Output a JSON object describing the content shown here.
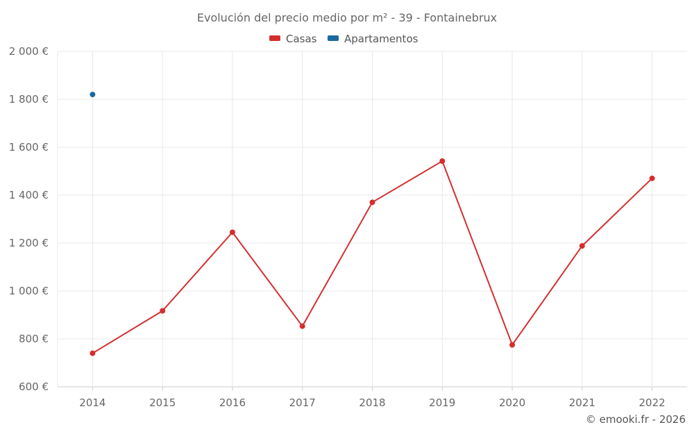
{
  "chart_data": {
    "type": "line",
    "title": "Evolución del precio medio por m² - 39 - Fontainebrux",
    "categories": [
      "2014",
      "2015",
      "2016",
      "2017",
      "2018",
      "2019",
      "2020",
      "2021",
      "2022"
    ],
    "series": [
      {
        "name": "Casas",
        "color": "#d32f2f",
        "values": [
          740,
          917,
          1245,
          853,
          1370,
          1542,
          775,
          1188,
          1470
        ]
      },
      {
        "name": "Apartamentos",
        "color": "#1a6aa0",
        "values": [
          1820,
          null,
          null,
          null,
          null,
          null,
          null,
          null,
          null
        ]
      }
    ],
    "ylim": [
      600,
      2000
    ],
    "yticks": [
      600,
      800,
      1000,
      1200,
      1400,
      1600,
      1800,
      2000
    ],
    "ytick_labels": [
      "600 €",
      "800 €",
      "1 000 €",
      "1 200 €",
      "1 400 €",
      "1 600 €",
      "1 800 €",
      "2 000 €"
    ],
    "xlabel": "",
    "ylabel": "",
    "legend_position": "top-center",
    "grid": true
  },
  "credit": "© emooki.fr - 2026"
}
